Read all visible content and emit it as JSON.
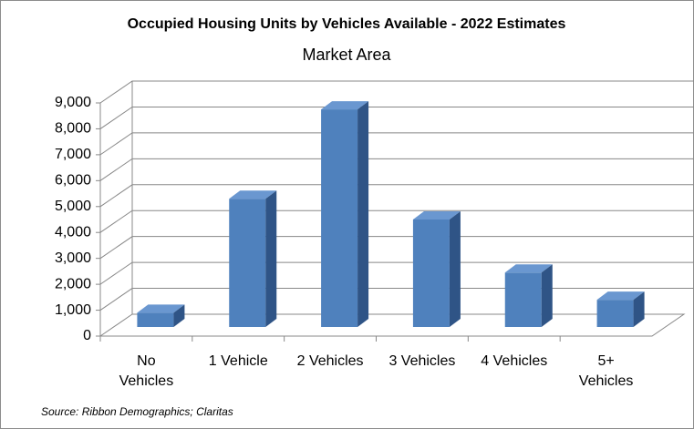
{
  "chart_data": {
    "type": "bar3d",
    "title": "Occupied Housing Units by Vehicles Available - 2022 Estimates",
    "subtitle": "Market Area",
    "source": "Source: Ribbon Demographics; Claritas",
    "categories": [
      "No\nVehicles",
      "1 Vehicle",
      "2 Vehicles",
      "3 Vehicles",
      "4 Vehicles",
      "5+\nVehicles"
    ],
    "values": [
      550,
      4950,
      8400,
      4150,
      2100,
      1050
    ],
    "color": "#4f81bd",
    "ylim": [
      0,
      9000
    ],
    "yticks": [
      0,
      {
        "value": 1000,
        "label": "1,000"
      },
      {
        "value": 2000,
        "label": "2,000"
      },
      {
        "value": 3000,
        "label": "3,000"
      },
      {
        "value": 4000,
        "label": "4,000"
      },
      {
        "value": 5000,
        "label": "5,000"
      },
      {
        "value": 6000,
        "label": "6,000"
      },
      {
        "value": 7000,
        "label": "7,000"
      },
      {
        "value": 8000,
        "label": "8,000"
      },
      {
        "value": 9000,
        "label": "9,000"
      }
    ],
    "grid": true
  }
}
